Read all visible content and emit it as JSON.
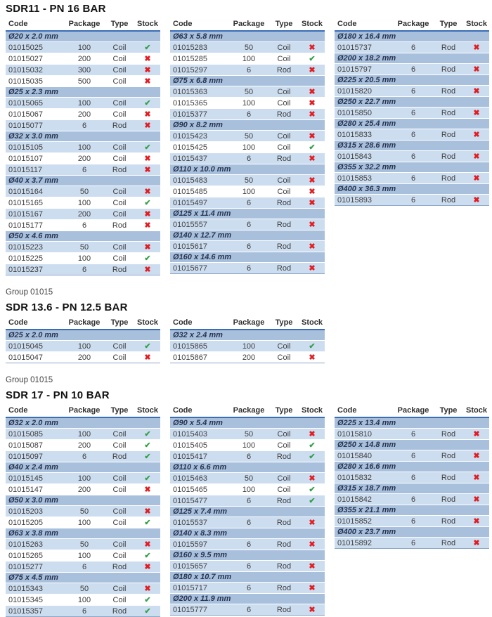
{
  "headers": [
    "Code",
    "Package",
    "Type",
    "Stock"
  ],
  "icons": {
    "check": "✔",
    "cross": "✖"
  },
  "colors": {
    "band_bg": "#a9c0dd",
    "odd_row_bg": "#cdddf0",
    "header_underline": "#3a6db6",
    "check_green": "#33a04a",
    "cross_red": "#e01e24"
  },
  "sections": [
    {
      "group_label": "",
      "title": "SDR11 - PN 16 BAR",
      "tables": [
        {
          "groups": [
            {
              "size": "Ø20 x 2.0 mm",
              "rows": [
                {
                  "code": "01015025",
                  "package": "100",
                  "type": "Coil",
                  "in_stock": true
                },
                {
                  "code": "01015027",
                  "package": "200",
                  "type": "Coil",
                  "in_stock": false
                },
                {
                  "code": "01015032",
                  "package": "300",
                  "type": "Coil",
                  "in_stock": false
                },
                {
                  "code": "01015035",
                  "package": "500",
                  "type": "Coil",
                  "in_stock": false
                }
              ]
            },
            {
              "size": "Ø25 x 2.3 mm",
              "rows": [
                {
                  "code": "01015065",
                  "package": "100",
                  "type": "Coil",
                  "in_stock": true
                },
                {
                  "code": "01015067",
                  "package": "200",
                  "type": "Coil",
                  "in_stock": false
                },
                {
                  "code": "01015077",
                  "package": "6",
                  "type": "Rod",
                  "in_stock": false
                }
              ]
            },
            {
              "size": "Ø32 x 3.0 mm",
              "rows": [
                {
                  "code": "01015105",
                  "package": "100",
                  "type": "Coil",
                  "in_stock": true
                },
                {
                  "code": "01015107",
                  "package": "200",
                  "type": "Coil",
                  "in_stock": false
                },
                {
                  "code": "01015117",
                  "package": "6",
                  "type": "Rod",
                  "in_stock": false
                }
              ]
            },
            {
              "size": "Ø40 x 3.7 mm",
              "rows": [
                {
                  "code": "01015164",
                  "package": "50",
                  "type": "Coil",
                  "in_stock": false
                },
                {
                  "code": "01015165",
                  "package": "100",
                  "type": "Coil",
                  "in_stock": true
                },
                {
                  "code": "01015167",
                  "package": "200",
                  "type": "Coil",
                  "in_stock": false
                },
                {
                  "code": "01015177",
                  "package": "6",
                  "type": "Rod",
                  "in_stock": false
                }
              ]
            },
            {
              "size": "Ø50 x 4.6 mm",
              "rows": [
                {
                  "code": "01015223",
                  "package": "50",
                  "type": "Coil",
                  "in_stock": false
                },
                {
                  "code": "01015225",
                  "package": "100",
                  "type": "Coil",
                  "in_stock": true
                },
                {
                  "code": "01015237",
                  "package": "6",
                  "type": "Rod",
                  "in_stock": false
                }
              ]
            }
          ]
        },
        {
          "groups": [
            {
              "size": "Ø63 x 5.8 mm",
              "rows": [
                {
                  "code": "01015283",
                  "package": "50",
                  "type": "Coil",
                  "in_stock": false
                },
                {
                  "code": "01015285",
                  "package": "100",
                  "type": "Coil",
                  "in_stock": true
                },
                {
                  "code": "01015297",
                  "package": "6",
                  "type": "Rod",
                  "in_stock": false
                }
              ]
            },
            {
              "size": "Ø75 x 6.8 mm",
              "rows": [
                {
                  "code": "01015363",
                  "package": "50",
                  "type": "Coil",
                  "in_stock": false
                },
                {
                  "code": "01015365",
                  "package": "100",
                  "type": "Coil",
                  "in_stock": false
                },
                {
                  "code": "01015377",
                  "package": "6",
                  "type": "Rod",
                  "in_stock": false
                }
              ]
            },
            {
              "size": "Ø90 x 8.2 mm",
              "rows": [
                {
                  "code": "01015423",
                  "package": "50",
                  "type": "Coil",
                  "in_stock": false
                },
                {
                  "code": "01015425",
                  "package": "100",
                  "type": "Coil",
                  "in_stock": true
                },
                {
                  "code": "01015437",
                  "package": "6",
                  "type": "Rod",
                  "in_stock": false
                }
              ]
            },
            {
              "size": "Ø110 x 10.0 mm",
              "rows": [
                {
                  "code": "01015483",
                  "package": "50",
                  "type": "Coil",
                  "in_stock": false
                },
                {
                  "code": "01015485",
                  "package": "100",
                  "type": "Coil",
                  "in_stock": false
                },
                {
                  "code": "01015497",
                  "package": "6",
                  "type": "Rod",
                  "in_stock": false
                }
              ]
            },
            {
              "size": "Ø125 x 11.4 mm",
              "rows": [
                {
                  "code": "01015557",
                  "package": "6",
                  "type": "Rod",
                  "in_stock": false
                }
              ]
            },
            {
              "size": "Ø140 x 12.7 mm",
              "rows": [
                {
                  "code": "01015617",
                  "package": "6",
                  "type": "Rod",
                  "in_stock": false
                }
              ]
            },
            {
              "size": "Ø160 x 14.6 mm",
              "rows": [
                {
                  "code": "01015677",
                  "package": "6",
                  "type": "Rod",
                  "in_stock": false
                }
              ]
            }
          ]
        },
        {
          "groups": [
            {
              "size": "Ø180 x 16.4 mm",
              "rows": [
                {
                  "code": "01015737",
                  "package": "6",
                  "type": "Rod",
                  "in_stock": false
                }
              ]
            },
            {
              "size": "Ø200 x 18.2 mm",
              "rows": [
                {
                  "code": "01015797",
                  "package": "6",
                  "type": "Rod",
                  "in_stock": false
                }
              ]
            },
            {
              "size": "Ø225 x 20.5 mm",
              "rows": [
                {
                  "code": "01015820",
                  "package": "6",
                  "type": "Rod",
                  "in_stock": false
                }
              ]
            },
            {
              "size": "Ø250 x 22.7 mm",
              "rows": [
                {
                  "code": "01015850",
                  "package": "6",
                  "type": "Rod",
                  "in_stock": false
                }
              ]
            },
            {
              "size": "Ø280 x 25.4 mm",
              "rows": [
                {
                  "code": "01015833",
                  "package": "6",
                  "type": "Rod",
                  "in_stock": false
                }
              ]
            },
            {
              "size": "Ø315 x 28.6 mm",
              "rows": [
                {
                  "code": "01015843",
                  "package": "6",
                  "type": "Rod",
                  "in_stock": false
                }
              ]
            },
            {
              "size": "Ø355 x 32.2 mm",
              "rows": [
                {
                  "code": "01015853",
                  "package": "6",
                  "type": "Rod",
                  "in_stock": false
                }
              ]
            },
            {
              "size": "Ø400 x 36.3 mm",
              "rows": [
                {
                  "code": "01015893",
                  "package": "6",
                  "type": "Rod",
                  "in_stock": false
                }
              ]
            }
          ]
        }
      ]
    },
    {
      "group_label": "Group 01015",
      "title": "SDR 13.6 - PN 12.5 BAR",
      "tables": [
        {
          "groups": [
            {
              "size": "Ø25 x 2.0 mm",
              "rows": [
                {
                  "code": "01015045",
                  "package": "100",
                  "type": "Coil",
                  "in_stock": true
                },
                {
                  "code": "01015047",
                  "package": "200",
                  "type": "Coil",
                  "in_stock": false
                }
              ]
            }
          ]
        },
        {
          "groups": [
            {
              "size": "Ø32 x 2.4 mm",
              "rows": [
                {
                  "code": "01015865",
                  "package": "100",
                  "type": "Coil",
                  "in_stock": true
                },
                {
                  "code": "01015867",
                  "package": "200",
                  "type": "Coil",
                  "in_stock": false
                }
              ]
            }
          ]
        }
      ]
    },
    {
      "group_label": "Group 01015",
      "title": "SDR 17 - PN 10 BAR",
      "tables": [
        {
          "groups": [
            {
              "size": "Ø32 x 2.0 mm",
              "rows": [
                {
                  "code": "01015085",
                  "package": "100",
                  "type": "Coil",
                  "in_stock": true
                },
                {
                  "code": "01015087",
                  "package": "200",
                  "type": "Coil",
                  "in_stock": true
                },
                {
                  "code": "01015097",
                  "package": "6",
                  "type": "Rod",
                  "in_stock": true
                }
              ]
            },
            {
              "size": "Ø40 x 2.4 mm",
              "rows": [
                {
                  "code": "01015145",
                  "package": "100",
                  "type": "Coil",
                  "in_stock": true
                },
                {
                  "code": "01015147",
                  "package": "200",
                  "type": "Coil",
                  "in_stock": false
                }
              ]
            },
            {
              "size": "Ø50 x 3.0 mm",
              "rows": [
                {
                  "code": "01015203",
                  "package": "50",
                  "type": "Coil",
                  "in_stock": false
                },
                {
                  "code": "01015205",
                  "package": "100",
                  "type": "Coil",
                  "in_stock": true
                }
              ]
            },
            {
              "size": "Ø63 x 3.8 mm",
              "rows": [
                {
                  "code": "01015263",
                  "package": "50",
                  "type": "Coil",
                  "in_stock": false
                },
                {
                  "code": "01015265",
                  "package": "100",
                  "type": "Coil",
                  "in_stock": true
                },
                {
                  "code": "01015277",
                  "package": "6",
                  "type": "Rod",
                  "in_stock": false
                }
              ]
            },
            {
              "size": "Ø75 x 4.5 mm",
              "rows": [
                {
                  "code": "01015343",
                  "package": "50",
                  "type": "Coil",
                  "in_stock": false
                },
                {
                  "code": "01015345",
                  "package": "100",
                  "type": "Coil",
                  "in_stock": true
                },
                {
                  "code": "01015357",
                  "package": "6",
                  "type": "Rod",
                  "in_stock": true
                }
              ]
            }
          ]
        },
        {
          "groups": [
            {
              "size": "Ø90 x 5.4 mm",
              "rows": [
                {
                  "code": "01015403",
                  "package": "50",
                  "type": "Coil",
                  "in_stock": false
                },
                {
                  "code": "01015405",
                  "package": "100",
                  "type": "Coil",
                  "in_stock": true
                },
                {
                  "code": "01015417",
                  "package": "6",
                  "type": "Rod",
                  "in_stock": true
                }
              ]
            },
            {
              "size": "Ø110 x 6.6 mm",
              "rows": [
                {
                  "code": "01015463",
                  "package": "50",
                  "type": "Coil",
                  "in_stock": false
                },
                {
                  "code": "01015465",
                  "package": "100",
                  "type": "Coil",
                  "in_stock": true
                },
                {
                  "code": "01015477",
                  "package": "6",
                  "type": "Rod",
                  "in_stock": true
                }
              ]
            },
            {
              "size": "Ø125 x 7.4 mm",
              "rows": [
                {
                  "code": "01015537",
                  "package": "6",
                  "type": "Rod",
                  "in_stock": false
                }
              ]
            },
            {
              "size": "Ø140 x 8.3 mm",
              "rows": [
                {
                  "code": "01015597",
                  "package": "6",
                  "type": "Rod",
                  "in_stock": false
                }
              ]
            },
            {
              "size": "Ø160 x 9.5 mm",
              "rows": [
                {
                  "code": "01015657",
                  "package": "6",
                  "type": "Rod",
                  "in_stock": false
                }
              ]
            },
            {
              "size": "Ø180 x 10.7 mm",
              "rows": [
                {
                  "code": "01015717",
                  "package": "6",
                  "type": "Rod",
                  "in_stock": false
                }
              ]
            },
            {
              "size": "Ø200 x 11.9 mm",
              "rows": [
                {
                  "code": "01015777",
                  "package": "6",
                  "type": "Rod",
                  "in_stock": false
                }
              ]
            }
          ]
        },
        {
          "groups": [
            {
              "size": "Ø225 x 13.4 mm",
              "rows": [
                {
                  "code": "01015810",
                  "package": "6",
                  "type": "Rod",
                  "in_stock": false
                }
              ]
            },
            {
              "size": "Ø250 x 14.8 mm",
              "rows": [
                {
                  "code": "01015840",
                  "package": "6",
                  "type": "Rod",
                  "in_stock": false
                }
              ]
            },
            {
              "size": "Ø280 x 16.6 mm",
              "rows": [
                {
                  "code": "01015832",
                  "package": "6",
                  "type": "Rod",
                  "in_stock": false
                }
              ]
            },
            {
              "size": "Ø315 x 18.7 mm",
              "rows": [
                {
                  "code": "01015842",
                  "package": "6",
                  "type": "Rod",
                  "in_stock": false
                }
              ]
            },
            {
              "size": "Ø355 x 21.1 mm",
              "rows": [
                {
                  "code": "01015852",
                  "package": "6",
                  "type": "Rod",
                  "in_stock": false
                }
              ]
            },
            {
              "size": "Ø400 x 23.7 mm",
              "rows": [
                {
                  "code": "01015892",
                  "package": "6",
                  "type": "Rod",
                  "in_stock": false
                }
              ]
            }
          ]
        }
      ]
    }
  ]
}
